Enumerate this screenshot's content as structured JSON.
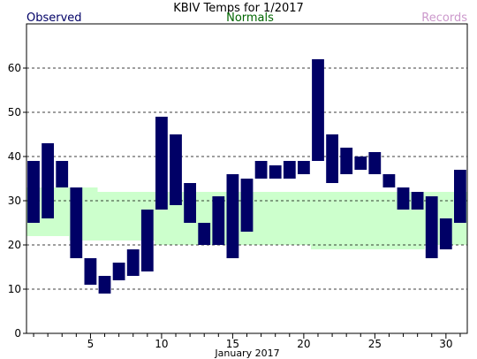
{
  "chart_data": {
    "type": "bar",
    "title": "KBIV Temps for 1/2017",
    "legend": {
      "observed": "Observed",
      "normals": "Normals",
      "records": "Records",
      "placement": "top"
    },
    "xlabel": "January 2017",
    "ylabel": "",
    "xlim": [
      0.5,
      31.5
    ],
    "ylim": [
      0,
      70
    ],
    "yticks": [
      0,
      10,
      20,
      30,
      40,
      50,
      60
    ],
    "xticks": [
      5,
      10,
      15,
      20,
      25,
      30
    ],
    "grid": "horizontal-dashed",
    "colors": {
      "observed": "#000066",
      "normals_fill": "#ccffcc",
      "observed_text": "#000066",
      "normals_text": "#006600",
      "records_text": "#cc99cc"
    },
    "days": [
      1,
      2,
      3,
      4,
      5,
      6,
      7,
      8,
      9,
      10,
      11,
      12,
      13,
      14,
      15,
      16,
      17,
      18,
      19,
      20,
      21,
      22,
      23,
      24,
      25,
      26,
      27,
      28,
      29,
      30,
      31
    ],
    "observed_high": [
      39,
      43,
      39,
      33,
      17,
      13,
      16,
      19,
      28,
      49,
      45,
      34,
      25,
      31,
      36,
      35,
      39,
      38,
      39,
      39,
      62,
      45,
      42,
      40,
      41,
      36,
      33,
      32,
      31,
      26,
      37
    ],
    "observed_low": [
      25,
      26,
      33,
      17,
      11,
      9,
      12,
      13,
      14,
      28,
      29,
      25,
      20,
      20,
      17,
      23,
      35,
      35,
      35,
      36,
      39,
      34,
      36,
      37,
      36,
      33,
      28,
      28,
      17,
      19,
      25
    ],
    "normal_high": [
      33,
      33,
      33,
      33,
      33,
      32,
      32,
      32,
      32,
      32,
      32,
      32,
      32,
      32,
      32,
      32,
      32,
      32,
      32,
      32,
      32,
      32,
      32,
      32,
      32,
      32,
      32,
      32,
      32,
      32,
      32
    ],
    "normal_low": [
      22,
      22,
      22,
      21,
      21,
      21,
      21,
      21,
      21,
      20,
      20,
      20,
      20,
      20,
      20,
      20,
      20,
      20,
      20,
      20,
      19,
      19,
      19,
      19,
      19,
      19,
      19,
      19,
      20,
      20,
      20
    ]
  }
}
